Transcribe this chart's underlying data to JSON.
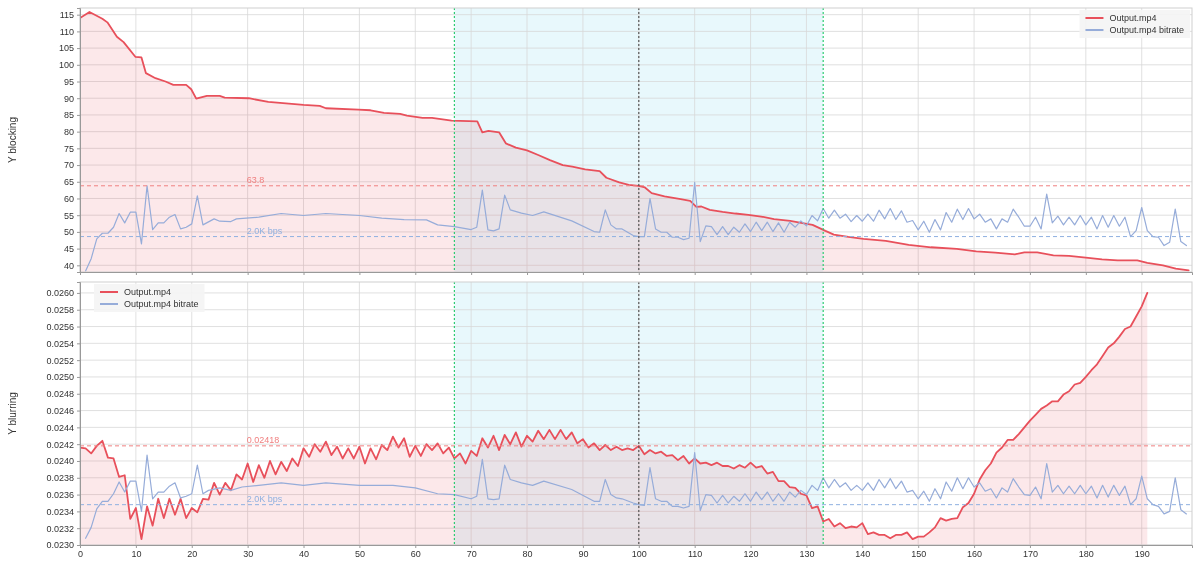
{
  "chart_data": [
    {
      "type": "area",
      "ylabel": "Y blocking",
      "xlim": [
        0,
        199
      ],
      "xticks": [
        0,
        10,
        20,
        30,
        40,
        50,
        60,
        70,
        80,
        90,
        100,
        110,
        120,
        130,
        140,
        150,
        160,
        170,
        180,
        190
      ],
      "ylim": [
        38,
        117
      ],
      "yticks": [
        40,
        45,
        50,
        55,
        60,
        65,
        70,
        75,
        80,
        85,
        90,
        95,
        100,
        105,
        110,
        115
      ],
      "tick_labels": "y",
      "grid": true,
      "legend": "top right",
      "series": [
        {
          "name": "Output.mp4",
          "color": "#e8505b",
          "x": [
            0,
            1.7,
            4,
            4.9,
            6.6,
            7.8,
            9.9,
            11,
            11.8,
            13.5,
            15.3,
            16.7,
            19,
            19.9,
            20.8,
            22.7,
            25,
            25.9,
            30.2,
            33.7,
            40,
            42.9,
            44,
            49.8,
            52,
            54.4,
            57.3,
            58.5,
            61.3,
            63,
            66.5,
            71.1,
            72,
            73.1,
            75,
            76.2,
            78,
            80,
            82,
            84.1,
            86.4,
            88.1,
            90.4,
            93,
            94.2,
            96.5,
            98.2,
            100,
            101.1,
            102.3,
            104.6,
            107.5,
            109.2,
            110.3,
            111.2,
            112.7,
            115,
            117.3,
            119.6,
            121.9,
            124.2,
            127.1,
            128.8,
            131.1,
            133.4,
            134.9,
            137.5,
            140.2,
            144.2,
            148.3,
            152.3,
            156.9,
            160.4,
            163.8,
            167.3,
            169,
            171.3,
            174.2,
            177,
            180,
            182.9,
            185.7,
            189.2,
            191,
            193.8,
            196.1,
            198.4
          ],
          "values": [
            114.0,
            115.8,
            113.8,
            112.7,
            108.4,
            106.8,
            102.4,
            102.2,
            97.5,
            96.0,
            95.0,
            94.0,
            94.0,
            92.7,
            89.9,
            90.7,
            90.7,
            90.2,
            90.0,
            88.9,
            88.0,
            87.7,
            87.0,
            86.6,
            86.4,
            85.6,
            85.3,
            84.8,
            84.1,
            84.1,
            83.3,
            83.1,
            79.8,
            80.2,
            79.8,
            76.5,
            75.2,
            74.4,
            73.0,
            71.5,
            70.0,
            69.5,
            68.7,
            68.2,
            66.2,
            64.8,
            64.1,
            63.8,
            63.3,
            61.6,
            60.6,
            59.8,
            59.3,
            57.5,
            57.6,
            56.6,
            56.0,
            55.5,
            55.1,
            54.6,
            53.8,
            53.3,
            52.8,
            52.1,
            50.3,
            49.2,
            48.5,
            47.9,
            47.3,
            46.1,
            45.4,
            44.9,
            44.2,
            43.8,
            43.3,
            43.9,
            43.9,
            43.0,
            42.8,
            42.3,
            41.8,
            41.5,
            41.5,
            40.7,
            40.0,
            39.0,
            38.5
          ]
        },
        {
          "name": "Output.mp4 bitrate",
          "type": "line",
          "color": "#96acd9",
          "x": [
            1,
            2,
            3,
            4,
            5,
            6,
            7,
            8,
            9,
            10,
            11,
            12,
            13,
            14,
            15,
            16,
            17,
            18,
            19,
            20,
            21,
            22,
            24,
            25,
            27,
            28,
            32,
            36,
            40,
            44,
            50,
            54,
            58,
            62,
            64,
            67,
            70,
            71,
            72,
            73,
            74,
            75,
            76,
            77,
            79,
            81,
            83,
            88,
            92,
            93,
            94,
            95,
            96,
            97,
            99,
            100,
            101,
            102,
            103,
            104,
            105,
            106,
            107,
            108,
            109,
            110,
            111,
            112,
            113,
            114,
            115,
            116,
            117,
            118,
            119,
            120,
            121,
            122,
            123,
            124,
            125,
            126,
            127,
            128,
            129,
            130,
            131,
            132,
            133,
            134,
            135,
            136,
            137,
            138,
            139,
            140,
            141,
            142,
            143,
            144,
            145,
            146,
            147,
            148,
            149,
            150,
            151,
            152,
            153,
            154,
            155,
            156,
            157,
            158,
            159,
            160,
            161,
            162,
            163,
            164,
            165,
            166,
            167,
            168,
            169,
            170,
            171,
            172,
            173,
            174,
            175,
            176,
            177,
            178,
            179,
            180,
            181,
            182,
            183,
            184,
            185,
            186,
            187,
            188,
            189,
            190,
            191,
            192,
            193,
            194,
            195,
            196,
            197,
            198
          ],
          "values": [
            38.3,
            42.0,
            47.9,
            49.6,
            49.6,
            51.4,
            55.5,
            52.7,
            55.9,
            55.9,
            46.4,
            63.8,
            50.7,
            52.7,
            52.7,
            54.4,
            55.2,
            50.9,
            51.4,
            52.4,
            60.8,
            52.1,
            53.9,
            53.2,
            53.1,
            53.9,
            54.4,
            55.5,
            54.9,
            55.5,
            54.9,
            54.1,
            53.7,
            53.6,
            52.1,
            51.6,
            50.7,
            51.4,
            62.5,
            50.6,
            50.3,
            50.9,
            61.0,
            56.6,
            55.6,
            54.9,
            56.0,
            53.3,
            50.1,
            49.9,
            56.6,
            52.1,
            50.9,
            50.9,
            48.9,
            48.6,
            48.6,
            60.0,
            50.9,
            49.9,
            49.9,
            48.4,
            48.4,
            47.7,
            48.1,
            64.8,
            47.1,
            51.8,
            51.6,
            49.2,
            51.6,
            49.2,
            51.4,
            49.9,
            52.4,
            50.1,
            52.9,
            50.4,
            52.9,
            50.1,
            52.7,
            49.9,
            52.9,
            51.4,
            53.3,
            51.8,
            54.9,
            53.3,
            57.0,
            54.1,
            56.5,
            54.1,
            55.3,
            53.1,
            54.9,
            53.2,
            55.3,
            53.2,
            56.5,
            53.9,
            57.0,
            53.7,
            56.3,
            52.9,
            53.4,
            50.6,
            53.2,
            49.9,
            53.7,
            50.6,
            55.8,
            52.9,
            56.8,
            53.7,
            57.0,
            53.9,
            55.3,
            52.9,
            53.9,
            50.9,
            53.9,
            52.9,
            56.8,
            54.4,
            51.7,
            51.7,
            54.4,
            50.9,
            61.3,
            52.7,
            54.7,
            52.1,
            54.4,
            52.1,
            54.9,
            52.1,
            54.4,
            50.9,
            54.9,
            51.4,
            54.9,
            51.7,
            54.4,
            48.6,
            50.4,
            57.3,
            50.4,
            48.6,
            48.4,
            45.9,
            46.9,
            56.8,
            47.1,
            45.9
          ]
        }
      ],
      "ref_lines": [
        {
          "axis": "y",
          "value": 63.8,
          "label": "63.8",
          "color": "#f08080",
          "line_style": "dashed"
        },
        {
          "axis": "y",
          "value": 48.6,
          "label": "2.0K bps",
          "color": "#8fb0e0",
          "line_style": "dashed"
        },
        {
          "axis": "x",
          "value": 67,
          "color": "#2ecc71",
          "line_style": "dotted"
        },
        {
          "axis": "x",
          "value": 100,
          "color": "#555555",
          "line_style": "dotted"
        },
        {
          "axis": "x",
          "value": 133,
          "color": "#2ecc71",
          "line_style": "dotted"
        }
      ],
      "bands": [
        {
          "axis": "x",
          "from": 67,
          "to": 133,
          "color": "#e8f8fc"
        }
      ]
    },
    {
      "type": "area",
      "ylabel": "Y blurring",
      "xlim": [
        0,
        199
      ],
      "xticks": [
        0,
        10,
        20,
        30,
        40,
        50,
        60,
        70,
        80,
        90,
        100,
        110,
        120,
        130,
        140,
        150,
        160,
        170,
        180,
        190
      ],
      "ylim": [
        0.023,
        0.02613
      ],
      "yticks": [
        {
          "value": 0.023,
          "label": "0.0230"
        },
        0.0232,
        0.0234,
        0.0236,
        0.0238,
        {
          "value": 0.024,
          "label": "0.0240"
        },
        0.0242,
        0.0244,
        0.0246,
        0.0248,
        {
          "value": 0.025,
          "label": "0.0250"
        },
        0.0252,
        0.0254,
        0.0256,
        0.0258,
        {
          "value": 0.026,
          "label": "0.0260"
        }
      ],
      "grid": true,
      "legend": "top left",
      "series": [
        {
          "name": "Output.mp4",
          "color": "#e8505b",
          "x": [
            0,
            1,
            2,
            3,
            4,
            5,
            6,
            7,
            8,
            9,
            10,
            11,
            12,
            13,
            14,
            15,
            16,
            17,
            18,
            19,
            20,
            21,
            22,
            23,
            24,
            25,
            26,
            27,
            28,
            29,
            30,
            31,
            32,
            33,
            34,
            35,
            36,
            37,
            38,
            39,
            40,
            41,
            42,
            43,
            44,
            45,
            46,
            47,
            48,
            49,
            50,
            51,
            52,
            53,
            54,
            55,
            56,
            57,
            58,
            59,
            60,
            61,
            62,
            63,
            64,
            65,
            66,
            67,
            68,
            69,
            70,
            71,
            72,
            73,
            74,
            75,
            76,
            77,
            78,
            79,
            80,
            81,
            82,
            83,
            84,
            85,
            86,
            87,
            88,
            89,
            90,
            91,
            92,
            93,
            94,
            95,
            96,
            97,
            98,
            99,
            100,
            101,
            102,
            103,
            104,
            105,
            106,
            107,
            108,
            109,
            110,
            111,
            112,
            113,
            114,
            115,
            116,
            117,
            118,
            119,
            120,
            121,
            122,
            123,
            124,
            125,
            126,
            127,
            128,
            129,
            130,
            131,
            132,
            133,
            134,
            135,
            136,
            137,
            138,
            139,
            140,
            141,
            142,
            143,
            144,
            145,
            146,
            147,
            148,
            149,
            150,
            151,
            152,
            153,
            154,
            155,
            156,
            157,
            158,
            159,
            160,
            161,
            162,
            163,
            164,
            165,
            166,
            167,
            168,
            169,
            170,
            171,
            172,
            173,
            174,
            175,
            176,
            177,
            178,
            179,
            180,
            181,
            182,
            183,
            184,
            185,
            186,
            187,
            188,
            189,
            190,
            191
          ],
          "values": [
            0.02416,
            0.02415,
            0.02409,
            0.02418,
            0.02424,
            0.02404,
            0.02403,
            0.02381,
            0.02383,
            0.02331,
            0.02344,
            0.02307,
            0.02346,
            0.02323,
            0.02355,
            0.02332,
            0.02355,
            0.02336,
            0.02355,
            0.02332,
            0.02344,
            0.02339,
            0.02355,
            0.02354,
            0.02374,
            0.0236,
            0.02374,
            0.02365,
            0.02384,
            0.02378,
            0.02397,
            0.02375,
            0.02395,
            0.0238,
            0.024,
            0.02384,
            0.02399,
            0.02388,
            0.02403,
            0.02394,
            0.02415,
            0.02405,
            0.0242,
            0.02411,
            0.02423,
            0.02407,
            0.02417,
            0.02403,
            0.02415,
            0.02403,
            0.02417,
            0.02397,
            0.02415,
            0.02402,
            0.02419,
            0.02413,
            0.02429,
            0.02416,
            0.02427,
            0.02405,
            0.02418,
            0.02406,
            0.0242,
            0.02413,
            0.02421,
            0.02409,
            0.02416,
            0.02403,
            0.02409,
            0.02397,
            0.02412,
            0.02406,
            0.02427,
            0.02416,
            0.0243,
            0.02413,
            0.02431,
            0.0242,
            0.02434,
            0.02417,
            0.0243,
            0.02423,
            0.02436,
            0.02426,
            0.02437,
            0.02426,
            0.02437,
            0.02426,
            0.02434,
            0.02421,
            0.02426,
            0.02416,
            0.02421,
            0.02413,
            0.02419,
            0.02413,
            0.02417,
            0.02413,
            0.02415,
            0.02413,
            0.02418,
            0.02408,
            0.02413,
            0.02409,
            0.02411,
            0.02406,
            0.02407,
            0.02401,
            0.02406,
            0.02397,
            0.02403,
            0.02397,
            0.02398,
            0.02395,
            0.02398,
            0.02394,
            0.02394,
            0.02391,
            0.02395,
            0.02392,
            0.02398,
            0.02392,
            0.02394,
            0.02385,
            0.02387,
            0.02376,
            0.02376,
            0.02369,
            0.02368,
            0.02361,
            0.02359,
            0.02344,
            0.02346,
            0.02328,
            0.02331,
            0.02322,
            0.02326,
            0.0232,
            0.02322,
            0.02321,
            0.02326,
            0.02313,
            0.02315,
            0.02312,
            0.02312,
            0.02308,
            0.02312,
            0.02312,
            0.02315,
            0.02307,
            0.0231,
            0.0231,
            0.02315,
            0.02321,
            0.02332,
            0.02329,
            0.02331,
            0.02332,
            0.02345,
            0.0235,
            0.02361,
            0.02378,
            0.02389,
            0.02397,
            0.0241,
            0.02416,
            0.02425,
            0.02425,
            0.02432,
            0.0244,
            0.02448,
            0.02455,
            0.02462,
            0.02466,
            0.02471,
            0.02471,
            0.02479,
            0.02483,
            0.02491,
            0.02493,
            0.025,
            0.02508,
            0.02515,
            0.02525,
            0.02535,
            0.0254,
            0.02548,
            0.02557,
            0.0256,
            0.02572,
            0.02584,
            0.026
          ]
        },
        {
          "name": "Output.mp4 bitrate",
          "type": "line",
          "color": "#96acd9",
          "x": [
            1,
            2,
            3,
            4,
            5,
            6,
            7,
            8,
            9,
            10,
            11,
            12,
            13,
            14,
            15,
            16,
            17,
            18,
            19,
            20,
            21,
            22,
            23,
            25,
            27,
            29,
            32,
            36,
            40,
            44,
            50,
            56,
            60,
            64,
            67,
            70,
            71,
            72,
            73,
            74,
            75,
            76,
            77,
            79,
            81,
            83,
            88,
            92,
            93,
            94,
            95,
            96,
            97,
            99,
            100,
            101,
            102,
            103,
            104,
            105,
            106,
            107,
            108,
            109,
            110,
            111,
            112,
            113,
            114,
            115,
            116,
            117,
            118,
            119,
            120,
            121,
            122,
            123,
            124,
            125,
            126,
            127,
            128,
            129,
            130,
            131,
            132,
            133,
            134,
            135,
            136,
            137,
            138,
            139,
            140,
            141,
            142,
            143,
            144,
            145,
            146,
            147,
            148,
            149,
            150,
            151,
            152,
            153,
            154,
            155,
            156,
            157,
            158,
            159,
            160,
            161,
            162,
            163,
            164,
            165,
            166,
            167,
            168,
            169,
            170,
            171,
            172,
            173,
            174,
            175,
            176,
            177,
            178,
            179,
            180,
            181,
            182,
            183,
            184,
            185,
            186,
            187,
            188,
            189,
            190,
            191,
            192,
            193,
            194,
            195,
            196,
            197,
            198
          ],
          "values": [
            0.02308,
            0.02321,
            0.02343,
            0.02352,
            0.02352,
            0.02361,
            0.02375,
            0.02363,
            0.02376,
            0.02376,
            0.0234,
            0.02407,
            0.02355,
            0.02363,
            0.02363,
            0.0237,
            0.02374,
            0.02356,
            0.02358,
            0.02361,
            0.02395,
            0.02361,
            0.02365,
            0.02368,
            0.02365,
            0.02369,
            0.02371,
            0.02374,
            0.02371,
            0.02374,
            0.02371,
            0.02371,
            0.02368,
            0.02361,
            0.0236,
            0.02355,
            0.02358,
            0.02402,
            0.02355,
            0.02354,
            0.02355,
            0.02395,
            0.02378,
            0.02374,
            0.02371,
            0.02376,
            0.02366,
            0.02352,
            0.02352,
            0.02378,
            0.0236,
            0.02356,
            0.02355,
            0.0235,
            0.02348,
            0.02347,
            0.02392,
            0.02355,
            0.02352,
            0.02352,
            0.02346,
            0.02346,
            0.02344,
            0.02346,
            0.0241,
            0.02341,
            0.0236,
            0.02359,
            0.0235,
            0.02359,
            0.0235,
            0.02358,
            0.02352,
            0.02361,
            0.02352,
            0.02363,
            0.02354,
            0.02363,
            0.02352,
            0.02361,
            0.02352,
            0.02363,
            0.02357,
            0.02365,
            0.0236,
            0.02371,
            0.02365,
            0.0238,
            0.02368,
            0.02378,
            0.02369,
            0.02374,
            0.02365,
            0.02371,
            0.02365,
            0.02374,
            0.02365,
            0.02378,
            0.02368,
            0.02379,
            0.02367,
            0.02376,
            0.02363,
            0.02365,
            0.02355,
            0.02364,
            0.02352,
            0.02367,
            0.02355,
            0.02375,
            0.02364,
            0.0238,
            0.02367,
            0.0238,
            0.02369,
            0.02374,
            0.02364,
            0.02367,
            0.02356,
            0.02368,
            0.02363,
            0.02379,
            0.02369,
            0.0236,
            0.02359,
            0.02369,
            0.02355,
            0.02397,
            0.02363,
            0.02371,
            0.02361,
            0.0237,
            0.02361,
            0.02371,
            0.02361,
            0.0237,
            0.02356,
            0.02371,
            0.02357,
            0.02371,
            0.02359,
            0.0237,
            0.02348,
            0.02355,
            0.02382,
            0.02355,
            0.02348,
            0.02346,
            0.02337,
            0.0234,
            0.0238,
            0.02342,
            0.02337
          ]
        }
      ],
      "ref_lines": [
        {
          "axis": "y",
          "value": 0.02418,
          "label": "0.02418",
          "color": "#f08080",
          "line_style": "dashed"
        },
        {
          "axis": "y",
          "value": 0.02348,
          "label": "2.0K bps",
          "color": "#8fb0e0",
          "line_style": "dashed"
        },
        {
          "axis": "x",
          "value": 67,
          "color": "#2ecc71",
          "line_style": "dotted"
        },
        {
          "axis": "x",
          "value": 100,
          "color": "#555555",
          "line_style": "dotted"
        },
        {
          "axis": "x",
          "value": 133,
          "color": "#2ecc71",
          "line_style": "dotted"
        }
      ],
      "bands": [
        {
          "axis": "x",
          "from": 67,
          "to": 133,
          "color": "#e8f8fc"
        }
      ]
    }
  ]
}
